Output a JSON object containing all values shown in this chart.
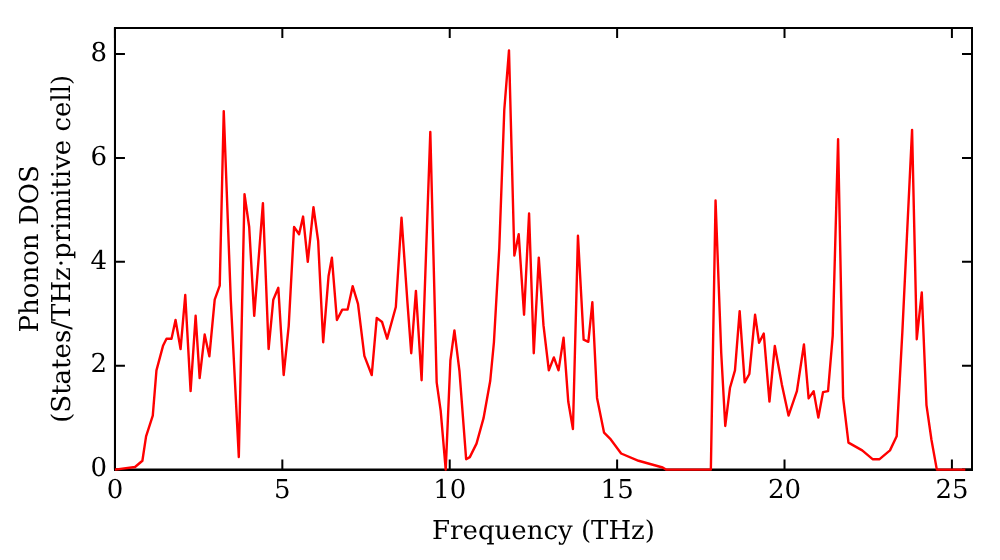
{
  "chart_data": {
    "type": "line",
    "xlabel": "Frequency (THz)",
    "ylabel": "Phonon DOS\n(States/THz·primitive cell)",
    "xlim": [
      0,
      25.6
    ],
    "ylim": [
      0,
      8.5
    ],
    "xticks": [
      0,
      5,
      10,
      15,
      20,
      25
    ],
    "yticks": [
      0,
      2,
      4,
      6,
      8
    ],
    "grid": false,
    "legend": false,
    "marker": "none",
    "line_style": "solid",
    "series": [
      {
        "color": "#ff0000",
        "x": [
          0,
          0.6,
          0.82,
          0.93,
          1.13,
          1.24,
          1.44,
          1.54,
          1.69,
          1.81,
          1.96,
          2.1,
          2.26,
          2.41,
          2.53,
          2.68,
          2.82,
          2.98,
          3.13,
          3.25,
          3.46,
          3.7,
          3.87,
          4.01,
          4.16,
          4.42,
          4.59,
          4.73,
          4.88,
          5.04,
          5.19,
          5.35,
          5.5,
          5.62,
          5.76,
          5.93,
          6.07,
          6.22,
          6.38,
          6.48,
          6.63,
          6.79,
          6.95,
          7.1,
          7.26,
          7.45,
          7.67,
          7.82,
          7.98,
          8.13,
          8.39,
          8.56,
          8.74,
          8.85,
          8.99,
          9.16,
          9.42,
          9.61,
          9.73,
          9.88,
          10.02,
          10.14,
          10.29,
          10.49,
          10.6,
          10.8,
          11.01,
          11.21,
          11.32,
          11.48,
          11.63,
          11.77,
          11.93,
          12.06,
          12.22,
          12.37,
          12.51,
          12.66,
          12.8,
          12.96,
          13.11,
          13.25,
          13.4,
          13.54,
          13.68,
          13.83,
          14.0,
          14.14,
          14.26,
          14.4,
          14.61,
          14.81,
          15.12,
          15.64,
          16.36,
          16.46,
          17.8,
          17.94,
          18.11,
          18.23,
          18.37,
          18.52,
          18.66,
          18.81,
          18.95,
          19.12,
          19.24,
          19.38,
          19.55,
          19.71,
          19.92,
          20.12,
          20.37,
          20.58,
          20.72,
          20.87,
          21.01,
          21.15,
          21.3,
          21.44,
          21.6,
          21.75,
          21.91,
          22.32,
          22.63,
          22.84,
          23.15,
          23.35,
          23.52,
          23.67,
          23.81,
          23.95,
          24.1,
          24.24,
          24.39,
          24.55,
          25.4
        ],
        "values": [
          0,
          0.05,
          0.17,
          0.64,
          1.04,
          1.91,
          2.39,
          2.52,
          2.52,
          2.88,
          2.32,
          3.36,
          1.51,
          2.96,
          1.76,
          2.6,
          2.18,
          3.27,
          3.54,
          6.9,
          3.27,
          0.24,
          5.3,
          4.67,
          2.96,
          5.13,
          2.32,
          3.27,
          3.5,
          1.82,
          2.76,
          4.67,
          4.53,
          4.87,
          4.0,
          5.05,
          4.4,
          2.45,
          3.72,
          4.08,
          2.88,
          3.08,
          3.08,
          3.53,
          3.19,
          2.19,
          1.82,
          2.92,
          2.84,
          2.52,
          3.13,
          4.85,
          3.19,
          2.24,
          3.44,
          1.72,
          6.5,
          1.68,
          1.13,
          0,
          2.1,
          2.68,
          1.9,
          0.2,
          0.24,
          0.5,
          0.99,
          1.71,
          2.45,
          4.26,
          6.93,
          8.07,
          4.12,
          4.53,
          2.98,
          4.93,
          2.24,
          4.08,
          2.78,
          1.91,
          2.16,
          1.91,
          2.54,
          1.31,
          0.78,
          4.5,
          2.5,
          2.46,
          3.22,
          1.38,
          0.71,
          0.58,
          0.31,
          0.17,
          0.04,
          0,
          0,
          5.18,
          2.24,
          0.84,
          1.57,
          1.91,
          3.05,
          1.68,
          1.84,
          2.98,
          2.44,
          2.62,
          1.31,
          2.38,
          1.64,
          1.04,
          1.51,
          2.41,
          1.37,
          1.51,
          1.0,
          1.49,
          1.51,
          2.58,
          6.36,
          1.38,
          0.52,
          0.37,
          0.2,
          0.2,
          0.37,
          0.64,
          2.65,
          4.67,
          6.54,
          2.51,
          3.41,
          1.24,
          0.57,
          0,
          0
        ]
      }
    ]
  }
}
